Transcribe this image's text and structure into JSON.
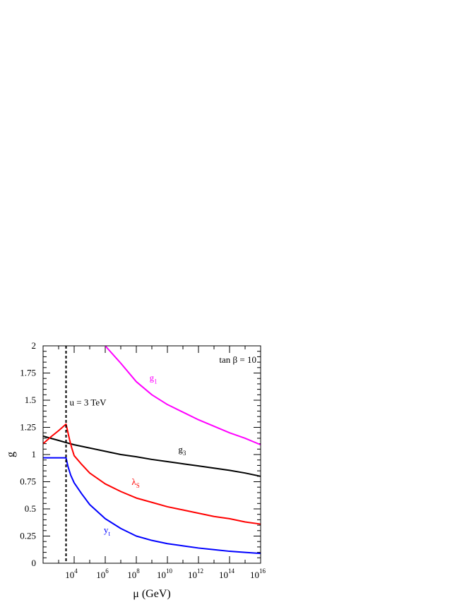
{
  "chart_data": {
    "type": "line",
    "xlabel": "μ (GeV)",
    "ylabel": "g",
    "x_scale": "log10",
    "xlim": [
      100,
      1e+16
    ],
    "ylim": [
      0,
      2
    ],
    "x_tick_labels": [
      {
        "base": "10",
        "exp": "4",
        "value": 10000.0
      },
      {
        "base": "10",
        "exp": "6",
        "value": 1000000.0
      },
      {
        "base": "10",
        "exp": "8",
        "value": 100000000.0
      },
      {
        "base": "10",
        "exp": "10",
        "value": 10000000000.0
      },
      {
        "base": "10",
        "exp": "12",
        "value": 1000000000000.0
      },
      {
        "base": "10",
        "exp": "14",
        "value": 100000000000000.0
      },
      {
        "base": "10",
        "exp": "16",
        "value": 1e+16
      }
    ],
    "y_tick_labels": [
      {
        "text": "0",
        "value": 0
      },
      {
        "text": "0.25",
        "value": 0.25
      },
      {
        "text": "0.5",
        "value": 0.5
      },
      {
        "text": "0.75",
        "value": 0.75
      },
      {
        "text": "1",
        "value": 1
      },
      {
        "text": "1.25",
        "value": 1.25
      },
      {
        "text": "1.5",
        "value": 1.5
      },
      {
        "text": "1.75",
        "value": 1.75
      },
      {
        "text": "2",
        "value": 2
      }
    ],
    "annotations": {
      "tanb": "tan β = 10",
      "u_line": "u = 3 TeV",
      "u_value_gev": 3000
    },
    "series": [
      {
        "name": "g1",
        "label_main": "g",
        "label_sub": "1",
        "color": "#ff00ff",
        "label_at": [
          700000000.0,
          1.68
        ],
        "points": [
          [
            1000000.0,
            2.0
          ],
          [
            10000000.0,
            1.84
          ],
          [
            100000000.0,
            1.67
          ],
          [
            1000000000.0,
            1.55
          ],
          [
            10000000000.0,
            1.46
          ],
          [
            100000000000.0,
            1.39
          ],
          [
            1000000000000.0,
            1.32
          ],
          [
            10000000000000.0,
            1.26
          ],
          [
            100000000000000.0,
            1.2
          ],
          [
            1000000000000000.0,
            1.15
          ],
          [
            1e+16,
            1.09
          ]
        ]
      },
      {
        "name": "g3",
        "label_main": "g",
        "label_sub": "3",
        "color": "#000000",
        "label_at": [
          50000000000.0,
          1.02
        ],
        "points": [
          [
            100,
            1.17
          ],
          [
            300,
            1.15
          ],
          [
            1000,
            1.13
          ],
          [
            3000,
            1.11
          ],
          [
            10000.0,
            1.09
          ],
          [
            100000.0,
            1.06
          ],
          [
            1000000.0,
            1.03
          ],
          [
            10000000.0,
            1.0
          ],
          [
            100000000.0,
            0.98
          ],
          [
            1000000000.0,
            0.955
          ],
          [
            10000000000.0,
            0.935
          ],
          [
            100000000000.0,
            0.915
          ],
          [
            1000000000000.0,
            0.895
          ],
          [
            10000000000000.0,
            0.875
          ],
          [
            100000000000000.0,
            0.855
          ],
          [
            1000000000000000.0,
            0.83
          ],
          [
            1e+16,
            0.8
          ]
        ]
      },
      {
        "name": "lambdaS",
        "label_main": "λ",
        "label_sub": "S",
        "color": "#ff0000",
        "label_at": [
          50000000.0,
          0.72
        ],
        "points": [
          [
            100,
            1.1
          ],
          [
            300,
            1.16
          ],
          [
            1000,
            1.22
          ],
          [
            3000,
            1.28
          ],
          [
            5000,
            1.14
          ],
          [
            7000,
            1.06
          ],
          [
            10000.0,
            0.99
          ],
          [
            30000.0,
            0.91
          ],
          [
            100000.0,
            0.83
          ],
          [
            1000000.0,
            0.73
          ],
          [
            10000000.0,
            0.66
          ],
          [
            100000000.0,
            0.6
          ],
          [
            1000000000.0,
            0.56
          ],
          [
            10000000000.0,
            0.52
          ],
          [
            100000000000.0,
            0.49
          ],
          [
            1000000000000.0,
            0.46
          ],
          [
            10000000000000.0,
            0.43
          ],
          [
            100000000000000.0,
            0.41
          ],
          [
            1000000000000000.0,
            0.38
          ],
          [
            1e+16,
            0.36
          ]
        ]
      },
      {
        "name": "yt",
        "label_main": "y",
        "label_sub": "t",
        "color": "#0000ff",
        "label_at": [
          800000.0,
          0.28
        ],
        "points": [
          [
            100,
            0.97
          ],
          [
            300,
            0.97
          ],
          [
            1000,
            0.97
          ],
          [
            3000,
            0.97
          ],
          [
            4000,
            0.89
          ],
          [
            6000,
            0.81
          ],
          [
            10000.0,
            0.74
          ],
          [
            30000.0,
            0.64
          ],
          [
            100000.0,
            0.54
          ],
          [
            1000000.0,
            0.41
          ],
          [
            10000000.0,
            0.32
          ],
          [
            100000000.0,
            0.25
          ],
          [
            1000000000.0,
            0.21
          ],
          [
            10000000000.0,
            0.18
          ],
          [
            100000000000.0,
            0.16
          ],
          [
            1000000000000.0,
            0.14
          ],
          [
            10000000000000.0,
            0.125
          ],
          [
            100000000000000.0,
            0.11
          ],
          [
            1000000000000000.0,
            0.1
          ],
          [
            1e+16,
            0.09
          ]
        ]
      }
    ]
  }
}
